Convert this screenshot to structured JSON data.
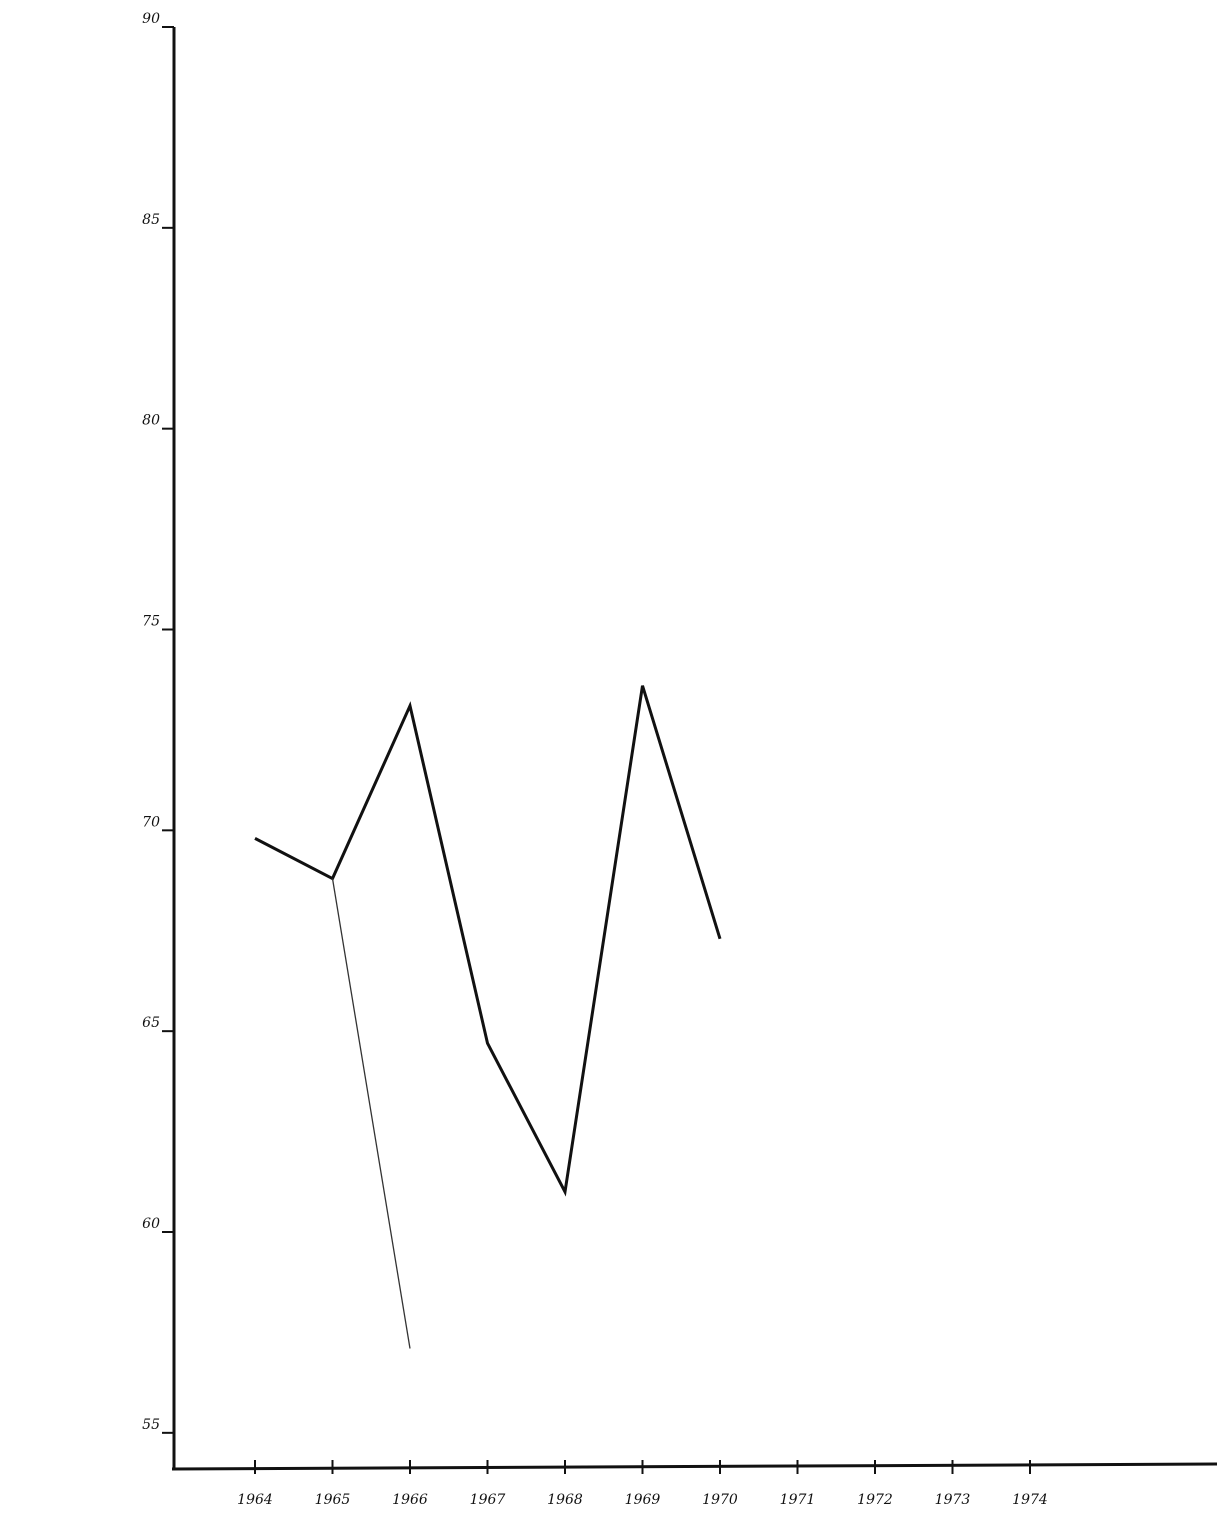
{
  "chart_data": {
    "type": "line",
    "categories": [
      "1964",
      "1965",
      "1966",
      "1967",
      "1968",
      "1969",
      "1970",
      "1971",
      "1972",
      "1973",
      "1974"
    ],
    "series": [
      {
        "color": "#111111",
        "values": [
          69.8,
          68.8,
          73.1,
          64.7,
          61.0,
          73.6,
          67.3,
          null,
          null,
          null,
          null
        ]
      },
      {
        "color": "#333333",
        "values": [
          null,
          68.8,
          57.1,
          null,
          null,
          null,
          null,
          null,
          null,
          null,
          null
        ]
      }
    ],
    "ylim": [
      54,
      90
    ],
    "yticks": [
      55,
      60,
      65,
      70,
      75,
      80,
      85,
      90
    ],
    "grid": false
  }
}
